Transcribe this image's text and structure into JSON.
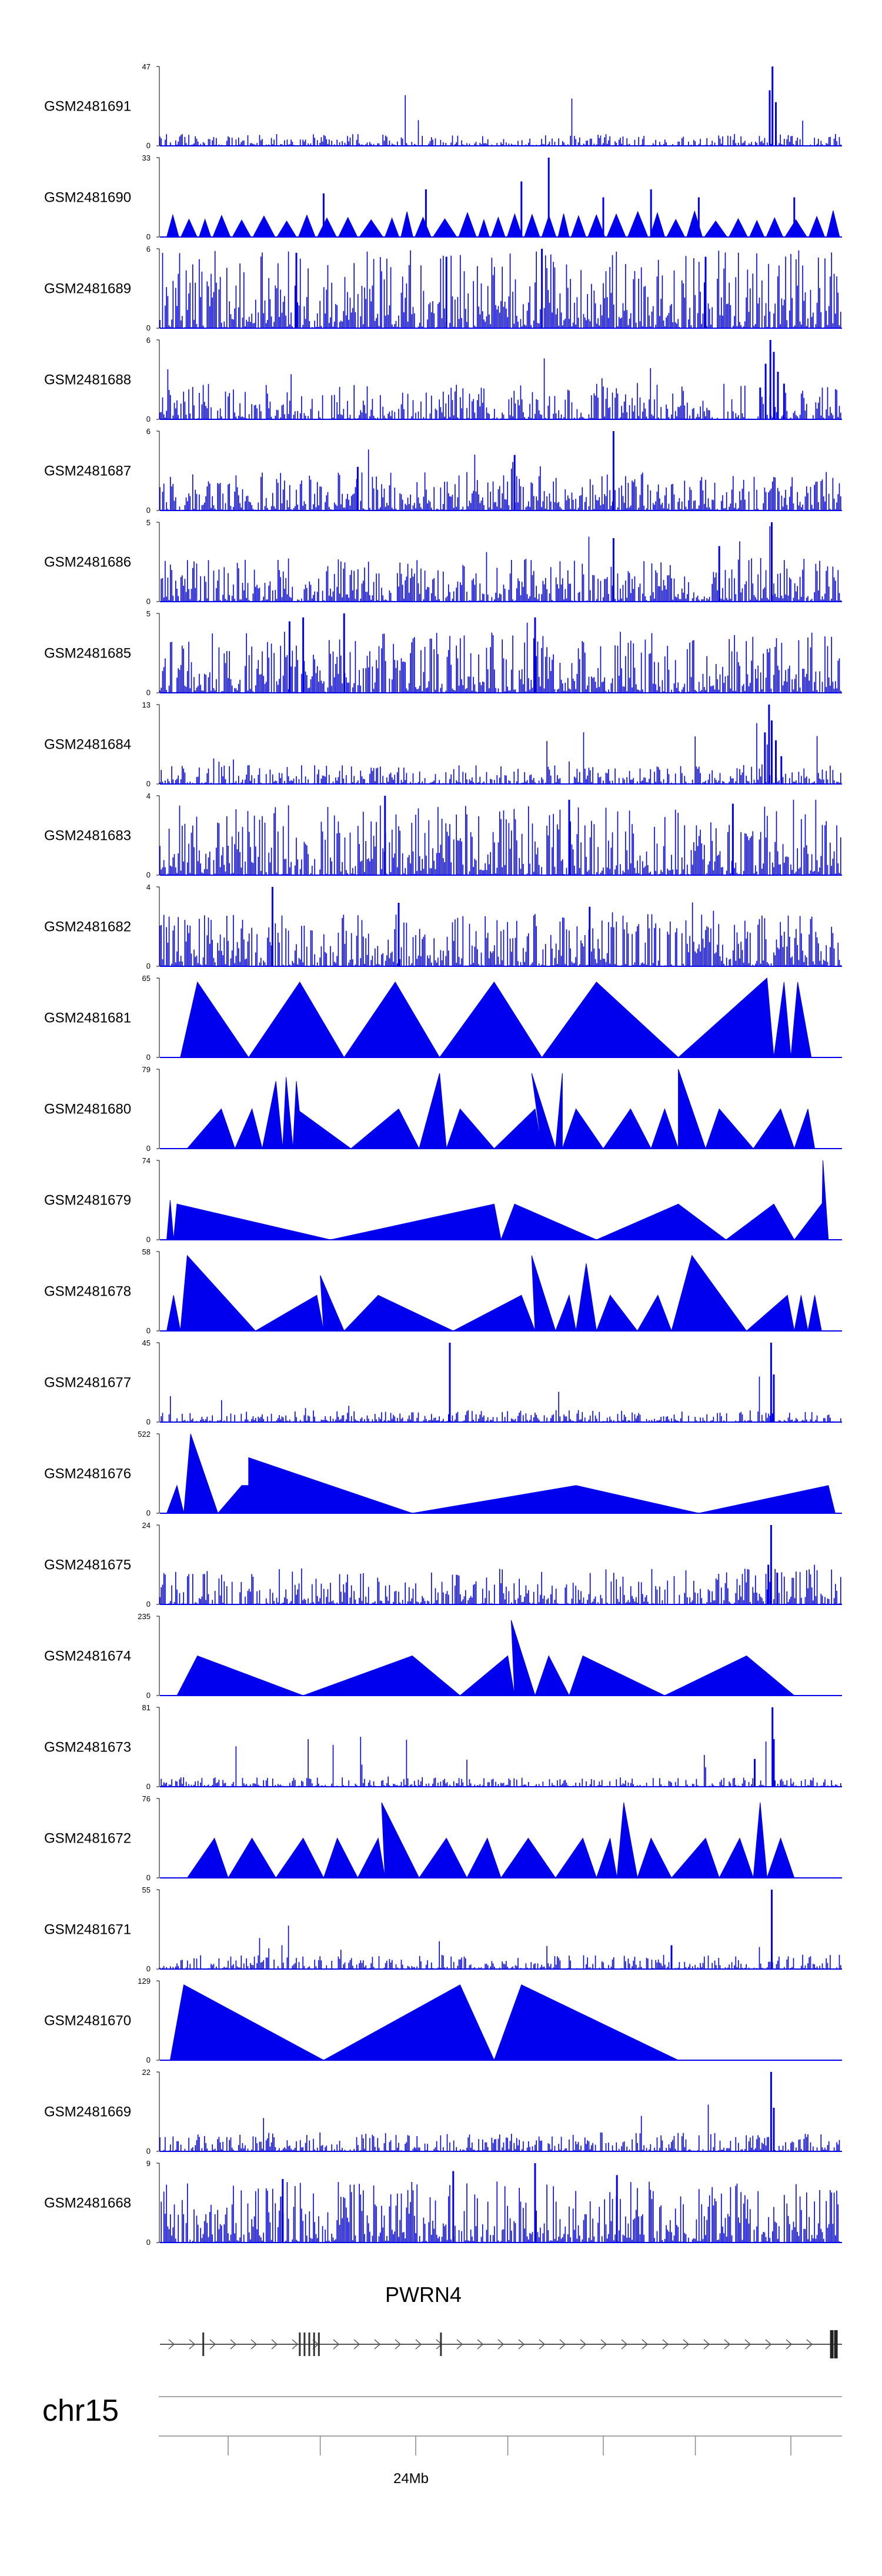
{
  "chart_data": {
    "type": "area",
    "title": "",
    "colors": {
      "signal": "#0000ee",
      "axis": "#000000",
      "gene": "#444444",
      "ideogram": "#888888"
    },
    "tracks": [
      {
        "name": "GSM2481691",
        "ymax": 47,
        "style": "noise",
        "base": 0.05,
        "seed": 11,
        "peaks": [
          [
            0.898,
            1.0
          ],
          [
            0.894,
            0.7
          ],
          [
            0.903,
            0.55
          ]
        ]
      },
      {
        "name": "GSM2481690",
        "ymax": 33,
        "style": "mixed",
        "base": 0.3,
        "seed": 12,
        "peaks": [
          [
            0.24,
            0.55
          ],
          [
            0.39,
            0.6
          ],
          [
            0.53,
            0.7
          ],
          [
            0.57,
            1.0
          ],
          [
            0.65,
            0.5
          ],
          [
            0.72,
            0.6
          ],
          [
            0.79,
            0.5
          ],
          [
            0.93,
            0.5
          ]
        ]
      },
      {
        "name": "GSM2481689",
        "ymax": 6,
        "style": "dense",
        "base": 0.45,
        "seed": 13,
        "peaks": [
          [
            0.2,
            0.95
          ],
          [
            0.42,
            0.9
          ],
          [
            0.56,
            1.0
          ],
          [
            0.8,
            0.9
          ]
        ]
      },
      {
        "name": "GSM2481688",
        "ymax": 6,
        "style": "noise",
        "base": 0.15,
        "seed": 14,
        "peaks": [
          [
            0.895,
            1.0
          ],
          [
            0.9,
            0.85
          ],
          [
            0.888,
            0.7
          ],
          [
            0.906,
            0.6
          ],
          [
            0.915,
            0.45
          ],
          [
            0.88,
            0.4
          ]
        ]
      },
      {
        "name": "GSM2481687",
        "ymax": 6,
        "style": "dense",
        "base": 0.22,
        "seed": 15,
        "peaks": [
          [
            0.665,
            1.0
          ],
          [
            0.52,
            0.7
          ],
          [
            0.29,
            0.55
          ]
        ]
      },
      {
        "name": "GSM2481686",
        "ymax": 5,
        "style": "dense",
        "base": 0.25,
        "seed": 16,
        "peaks": [
          [
            0.897,
            1.0
          ],
          [
            0.665,
            0.8
          ],
          [
            0.82,
            0.7
          ]
        ]
      },
      {
        "name": "GSM2481685",
        "ymax": 5,
        "style": "dense",
        "base": 0.35,
        "seed": 17,
        "peaks": [
          [
            0.27,
            1.0
          ],
          [
            0.21,
            0.95
          ],
          [
            0.19,
            0.9
          ],
          [
            0.55,
            0.95
          ]
        ]
      },
      {
        "name": "GSM2481684",
        "ymax": 13,
        "style": "noise",
        "base": 0.08,
        "seed": 18,
        "peaks": [
          [
            0.893,
            1.0
          ],
          [
            0.897,
            0.8
          ],
          [
            0.887,
            0.65
          ],
          [
            0.903,
            0.55
          ],
          [
            0.911,
            0.35
          ]
        ]
      },
      {
        "name": "GSM2481683",
        "ymax": 4,
        "style": "dense",
        "base": 0.4,
        "seed": 19,
        "peaks": [
          [
            0.33,
            1.0
          ],
          [
            0.6,
            0.95
          ],
          [
            0.84,
            0.9
          ]
        ]
      },
      {
        "name": "GSM2481682",
        "ymax": 4,
        "style": "dense",
        "base": 0.3,
        "seed": 20,
        "peaks": [
          [
            0.165,
            1.0
          ],
          [
            0.35,
            0.8
          ],
          [
            0.63,
            0.75
          ]
        ]
      },
      {
        "name": "GSM2481681",
        "ymax": 65,
        "style": "tri",
        "seed": 21,
        "points": [
          [
            0.03,
            0
          ],
          [
            0.055,
            0.95
          ],
          [
            0.13,
            0
          ],
          [
            0.205,
            0.95
          ],
          [
            0.27,
            0
          ],
          [
            0.345,
            0.95
          ],
          [
            0.41,
            0
          ],
          [
            0.49,
            0.95
          ],
          [
            0.56,
            0
          ],
          [
            0.64,
            0.95
          ],
          [
            0.76,
            0
          ],
          [
            0.89,
            1.0
          ],
          [
            0.9,
            0
          ],
          [
            0.915,
            0.95
          ],
          [
            0.925,
            0
          ],
          [
            0.935,
            0.95
          ],
          [
            0.955,
            0
          ]
        ]
      },
      {
        "name": "GSM2481680",
        "ymax": 79,
        "style": "tri",
        "seed": 22,
        "points": [
          [
            0.04,
            0
          ],
          [
            0.09,
            0.5
          ],
          [
            0.11,
            0
          ],
          [
            0.135,
            0.5
          ],
          [
            0.15,
            0
          ],
          [
            0.17,
            0.85
          ],
          [
            0.18,
            0
          ],
          [
            0.185,
            0.9
          ],
          [
            0.195,
            0
          ],
          [
            0.2,
            0.85
          ],
          [
            0.21,
            0
          ],
          [
            0.2,
            0.5
          ],
          [
            0.28,
            0
          ],
          [
            0.35,
            0.5
          ],
          [
            0.38,
            0
          ],
          [
            0.41,
            0.95
          ],
          [
            0.42,
            0
          ],
          [
            0.44,
            0.5
          ],
          [
            0.49,
            0
          ],
          [
            0.55,
            0.5
          ],
          [
            0.56,
            0
          ],
          [
            0.545,
            0.95
          ],
          [
            0.58,
            0
          ],
          [
            0.59,
            0.95
          ],
          [
            0.59,
            0
          ],
          [
            0.61,
            0.5
          ],
          [
            0.65,
            0
          ],
          [
            0.69,
            0.5
          ],
          [
            0.72,
            0
          ],
          [
            0.74,
            0.5
          ],
          [
            0.76,
            0
          ],
          [
            0.76,
            1.0
          ],
          [
            0.8,
            0
          ],
          [
            0.82,
            0.5
          ],
          [
            0.87,
            0
          ],
          [
            0.91,
            0.5
          ],
          [
            0.93,
            0
          ],
          [
            0.95,
            0.5
          ],
          [
            0.96,
            0
          ]
        ]
      },
      {
        "name": "GSM2481679",
        "ymax": 74,
        "style": "tri",
        "seed": 23,
        "points": [
          [
            0.01,
            0
          ],
          [
            0.015,
            0.5
          ],
          [
            0.02,
            0
          ],
          [
            0.025,
            0.45
          ],
          [
            0.25,
            0
          ],
          [
            0.49,
            0.45
          ],
          [
            0.5,
            0
          ],
          [
            0.52,
            0.45
          ],
          [
            0.64,
            0
          ],
          [
            0.76,
            0.45
          ],
          [
            0.83,
            0
          ],
          [
            0.9,
            0.45
          ],
          [
            0.93,
            0
          ],
          [
            0.97,
            0.45
          ],
          [
            0.97,
            0
          ],
          [
            0.972,
            1.0
          ],
          [
            0.98,
            0
          ]
        ]
      },
      {
        "name": "GSM2481678",
        "ymax": 58,
        "style": "tri",
        "seed": 24,
        "points": [
          [
            0.01,
            0
          ],
          [
            0.02,
            0.45
          ],
          [
            0.03,
            0
          ],
          [
            0.04,
            0.95
          ],
          [
            0.14,
            0
          ],
          [
            0.23,
            0.45
          ],
          [
            0.24,
            0
          ],
          [
            0.235,
            0.7
          ],
          [
            0.27,
            0
          ],
          [
            0.32,
            0.45
          ],
          [
            0.43,
            0
          ],
          [
            0.53,
            0.45
          ],
          [
            0.55,
            0
          ],
          [
            0.545,
            0.95
          ],
          [
            0.58,
            0
          ],
          [
            0.6,
            0.45
          ],
          [
            0.61,
            0
          ],
          [
            0.625,
            0.85
          ],
          [
            0.64,
            0
          ],
          [
            0.66,
            0.45
          ],
          [
            0.7,
            0
          ],
          [
            0.73,
            0.45
          ],
          [
            0.75,
            0
          ],
          [
            0.78,
            0.95
          ],
          [
            0.86,
            0
          ],
          [
            0.92,
            0.45
          ],
          [
            0.93,
            0
          ],
          [
            0.94,
            0.45
          ],
          [
            0.95,
            0
          ],
          [
            0.96,
            0.45
          ],
          [
            0.97,
            0
          ]
        ]
      },
      {
        "name": "GSM2481677",
        "ymax": 45,
        "style": "noise",
        "base": 0.05,
        "seed": 25,
        "peaks": [
          [
            0.425,
            1.0
          ],
          [
            0.896,
            1.0
          ],
          [
            0.9,
            0.6
          ]
        ]
      },
      {
        "name": "GSM2481676",
        "ymax": 522,
        "style": "tri",
        "seed": 26,
        "points": [
          [
            0.01,
            0
          ],
          [
            0.025,
            0.35
          ],
          [
            0.035,
            0
          ],
          [
            0.045,
            1.0
          ],
          [
            0.085,
            0
          ],
          [
            0.12,
            0.35
          ],
          [
            0.13,
            0.35
          ],
          [
            0.13,
            0.7
          ],
          [
            0.37,
            0
          ],
          [
            0.61,
            0.35
          ],
          [
            0.79,
            0
          ],
          [
            0.98,
            0.35
          ],
          [
            0.99,
            0
          ]
        ]
      },
      {
        "name": "GSM2481675",
        "ymax": 24,
        "style": "noise",
        "base": 0.15,
        "seed": 27,
        "peaks": [
          [
            0.896,
            1.0
          ],
          [
            0.892,
            0.5
          ],
          [
            0.905,
            0.4
          ]
        ]
      },
      {
        "name": "GSM2481674",
        "ymax": 235,
        "style": "tri",
        "seed": 28,
        "points": [
          [
            0.025,
            0
          ],
          [
            0.055,
            0.5
          ],
          [
            0.21,
            0
          ],
          [
            0.37,
            0.5
          ],
          [
            0.44,
            0
          ],
          [
            0.51,
            0.5
          ],
          [
            0.52,
            0
          ],
          [
            0.515,
            0.95
          ],
          [
            0.55,
            0
          ],
          [
            0.57,
            0.5
          ],
          [
            0.6,
            0
          ],
          [
            0.62,
            0.5
          ],
          [
            0.74,
            0
          ],
          [
            0.86,
            0.5
          ],
          [
            0.93,
            0
          ]
        ]
      },
      {
        "name": "GSM2481673",
        "ymax": 81,
        "style": "noise",
        "base": 0.04,
        "seed": 29,
        "peaks": [
          [
            0.898,
            1.0
          ],
          [
            0.872,
            0.35
          ],
          [
            0.9,
            0.6
          ]
        ]
      },
      {
        "name": "GSM2481672",
        "ymax": 76,
        "style": "tri",
        "seed": 30,
        "points": [
          [
            0.04,
            0
          ],
          [
            0.08,
            0.5
          ],
          [
            0.1,
            0
          ],
          [
            0.135,
            0.5
          ],
          [
            0.17,
            0
          ],
          [
            0.21,
            0.5
          ],
          [
            0.24,
            0
          ],
          [
            0.26,
            0.5
          ],
          [
            0.29,
            0
          ],
          [
            0.32,
            0.5
          ],
          [
            0.33,
            0
          ],
          [
            0.325,
            0.95
          ],
          [
            0.38,
            0
          ],
          [
            0.42,
            0.5
          ],
          [
            0.45,
            0
          ],
          [
            0.48,
            0.5
          ],
          [
            0.5,
            0
          ],
          [
            0.54,
            0.5
          ],
          [
            0.58,
            0
          ],
          [
            0.62,
            0.5
          ],
          [
            0.64,
            0
          ],
          [
            0.66,
            0.5
          ],
          [
            0.67,
            0
          ],
          [
            0.68,
            0.95
          ],
          [
            0.7,
            0
          ],
          [
            0.72,
            0.5
          ],
          [
            0.75,
            0
          ],
          [
            0.8,
            0.5
          ],
          [
            0.82,
            0
          ],
          [
            0.85,
            0.5
          ],
          [
            0.87,
            0
          ],
          [
            0.88,
            0.95
          ],
          [
            0.89,
            0
          ],
          [
            0.91,
            0.5
          ],
          [
            0.93,
            0
          ]
        ]
      },
      {
        "name": "GSM2481671",
        "ymax": 55,
        "style": "noise",
        "base": 0.06,
        "seed": 31,
        "peaks": [
          [
            0.897,
            1.0
          ],
          [
            0.75,
            0.3
          ]
        ]
      },
      {
        "name": "GSM2481670",
        "ymax": 129,
        "style": "tri",
        "seed": 32,
        "points": [
          [
            0.015,
            0
          ],
          [
            0.035,
            0.95
          ],
          [
            0.24,
            0
          ],
          [
            0.44,
            0.95
          ],
          [
            0.49,
            0
          ],
          [
            0.53,
            0.95
          ],
          [
            0.76,
            0
          ]
        ]
      },
      {
        "name": "GSM2481669",
        "ymax": 22,
        "style": "noise",
        "base": 0.08,
        "seed": 33,
        "peaks": [
          [
            0.896,
            1.0
          ],
          [
            0.9,
            0.55
          ]
        ]
      },
      {
        "name": "GSM2481668",
        "ymax": 9,
        "style": "dense",
        "base": 0.35,
        "seed": 34,
        "peaks": [
          [
            0.55,
            1.0
          ],
          [
            0.43,
            0.9
          ],
          [
            0.67,
            0.85
          ],
          [
            0.18,
            0.8
          ]
        ]
      }
    ],
    "gene": {
      "name": "PWRN4",
      "exons": [
        0.0635,
        0.205,
        0.212,
        0.219,
        0.226,
        0.233,
        0.412,
        0.985,
        0.991
      ],
      "thick_exons": [
        0.985,
        0.991
      ]
    },
    "axis": {
      "chromosome": "chr15",
      "tick_label": "24Mb",
      "tick_label_at": 0.375,
      "minor_ticks": [
        0.1,
        0.235,
        0.375,
        0.51,
        0.65,
        0.785,
        0.925
      ]
    }
  }
}
